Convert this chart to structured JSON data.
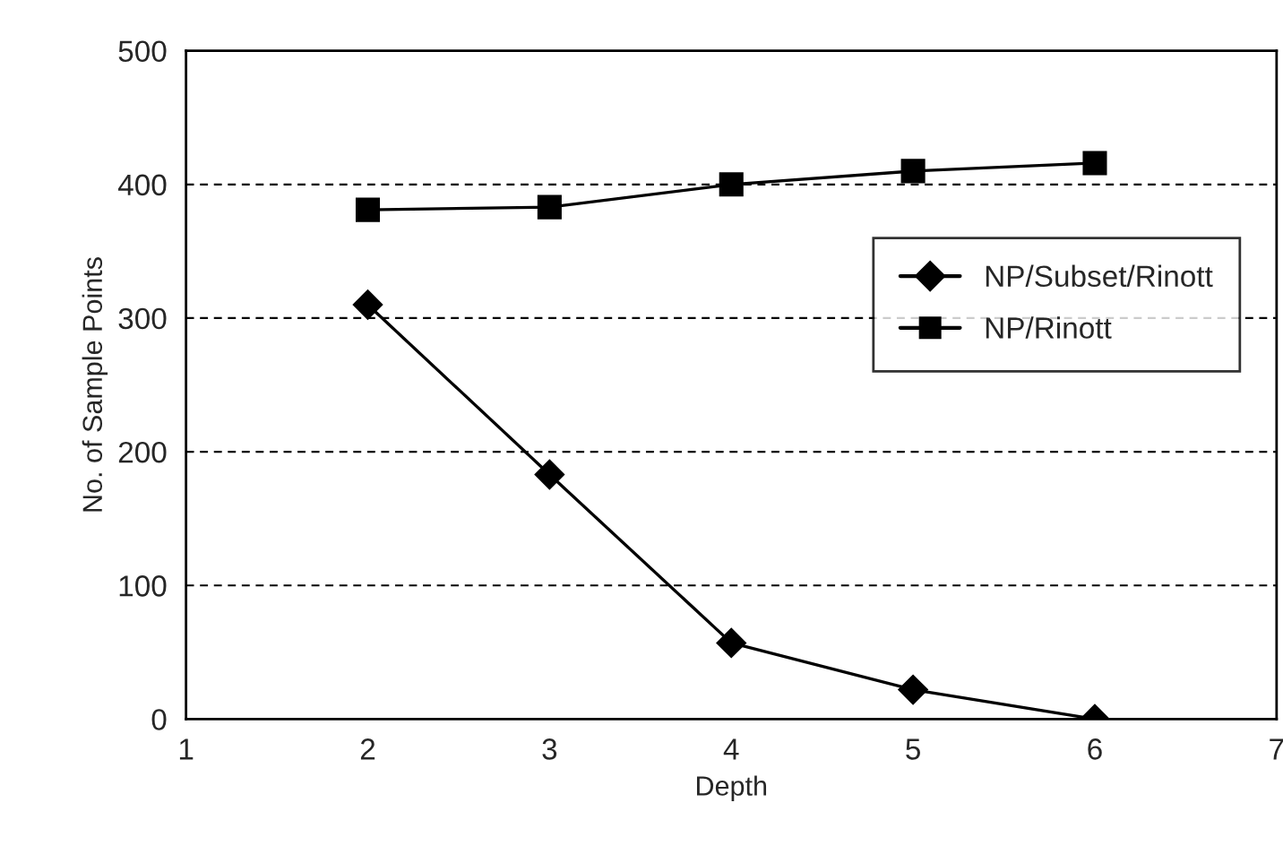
{
  "chart_data": {
    "type": "line",
    "xlabel": "Depth",
    "ylabel": "No. of Sample Points",
    "x": [
      2,
      3,
      4,
      5,
      6
    ],
    "series": [
      {
        "name": "NP/Subset/Rinott",
        "color": "#000000",
        "marker": "diamond",
        "values": [
          310,
          183,
          57,
          22,
          0
        ]
      },
      {
        "name": "NP/Rinott",
        "color": "#000000",
        "marker": "square",
        "values": [
          381,
          383,
          400,
          410,
          416
        ]
      }
    ],
    "xlim": [
      1,
      7
    ],
    "xticks": [
      1,
      2,
      3,
      4,
      5,
      6,
      7
    ],
    "ylim": [
      0,
      500
    ],
    "yticks": [
      0,
      100,
      200,
      300,
      400,
      500
    ],
    "grid": "y",
    "legend": "right",
    "line_style": "solid"
  }
}
